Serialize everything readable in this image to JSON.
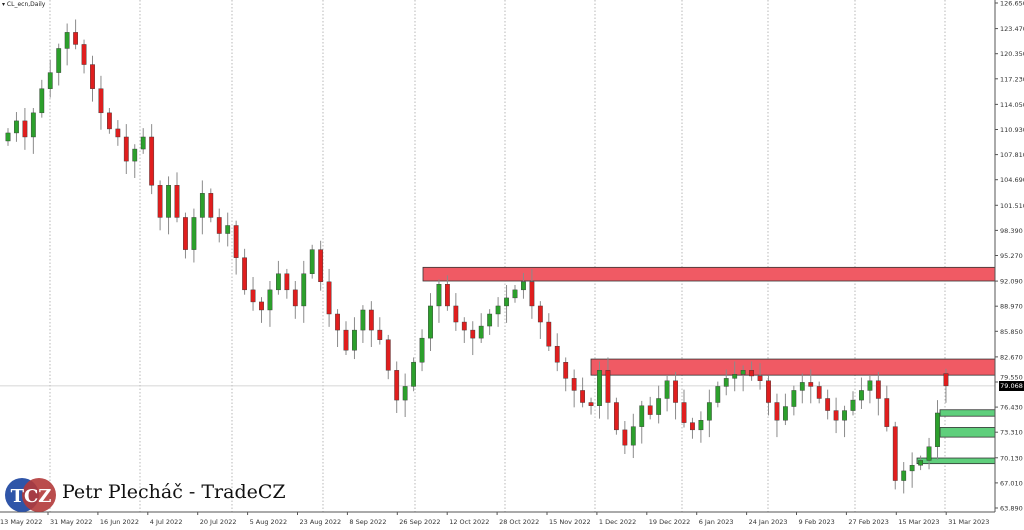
{
  "header": {
    "symbol_label": "CL_ecn,Daily"
  },
  "branding": {
    "logo_text": "TCZ",
    "author": "Petr Plecháč - TradeCZ"
  },
  "colors": {
    "bull": "#2ca02c",
    "bear": "#e01e1e",
    "resistance_zone": "#f05a64",
    "support_zone": "#5fcf7c",
    "wick": "#8a8a8a"
  },
  "chart_data": {
    "type": "candlestick",
    "title": "",
    "ylim": [
      63.89,
      126.65
    ],
    "y_ticks": [
      "126.650",
      "123.470",
      "120.350",
      "117.230",
      "114.050",
      "110.930",
      "107.810",
      "104.690",
      "101.510",
      "98.390",
      "95.270",
      "92.090",
      "88.970",
      "85.850",
      "82.670",
      "79.550",
      "76.430",
      "73.310",
      "70.130",
      "67.010",
      "63.890"
    ],
    "x_ticks": [
      "13 May 2022",
      "31 May 2022",
      "16 Jun 2022",
      "4 Jul 2022",
      "20 Jul 2022",
      "5 Aug 2022",
      "23 Aug 2022",
      "8 Sep 2022",
      "26 Sep 2022",
      "12 Oct 2022",
      "28 Oct 2022",
      "15 Nov 2022",
      "1 Dec 2022",
      "19 Dec 2022",
      "6 Jan 2023",
      "24 Jan 2023",
      "9 Feb 2023",
      "27 Feb 2023",
      "15 Mar 2023",
      "31 Mar 2023"
    ],
    "closes": [
      110.5,
      112,
      110,
      113,
      116,
      118,
      121,
      123,
      121.5,
      119,
      116,
      113,
      111,
      110,
      107,
      108.5,
      110,
      104,
      100,
      104,
      100,
      96,
      100,
      103,
      100,
      98,
      99,
      95,
      91,
      89.5,
      88.5,
      91,
      93,
      91,
      89,
      93,
      96,
      92,
      88,
      86,
      83.5,
      86,
      88.5,
      86,
      84.8,
      81,
      77.3,
      79,
      82,
      85,
      89,
      91.7,
      89,
      87,
      86,
      85,
      86.5,
      88,
      89,
      90,
      91,
      92,
      89,
      87,
      84,
      82,
      80,
      78.5,
      77,
      76.6,
      81,
      77,
      73.6,
      71.7,
      74,
      76.6,
      75.5,
      77.5,
      79.7,
      77,
      74.5,
      73.6,
      74.8,
      77,
      79,
      80,
      80.5,
      81,
      80.3,
      79.7,
      77,
      74.8,
      76.5,
      78.5,
      79.5,
      79,
      77.5,
      76,
      74.8,
      76,
      77.3,
      78.5,
      79.7,
      77.5,
      74,
      67.3,
      68.5,
      69.2,
      69.8,
      71.5,
      75.7,
      79.068
    ],
    "last_open": 80.6,
    "current_price": "79.068",
    "zones": [
      {
        "type": "resistance",
        "from": 92.1,
        "to": 93.8,
        "start": "26 Sep 2022"
      },
      {
        "type": "resistance",
        "from": 80.4,
        "to": 82.4,
        "start": "1 Dec 2022"
      },
      {
        "type": "support",
        "from": 75.3,
        "to": 76.1,
        "start": "31 Mar 2023"
      },
      {
        "type": "support",
        "from": 72.7,
        "to": 73.9,
        "start": "31 Mar 2023"
      },
      {
        "type": "support",
        "from": 69.4,
        "to": 70.1,
        "start": "15 Mar 2023"
      }
    ]
  }
}
